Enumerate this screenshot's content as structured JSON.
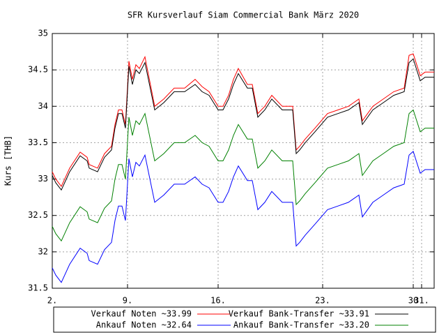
{
  "chart_data": {
    "type": "line",
    "title": "SFR Kursverlauf Siam Commercial Bank März 2020",
    "y_label": "Kurs [THB]",
    "x": [
      0,
      5,
      13,
      25,
      40,
      50,
      53,
      65,
      75,
      85,
      90,
      95,
      100,
      105,
      110,
      115,
      120,
      125,
      133,
      147,
      160,
      175,
      190,
      205,
      215,
      225,
      238,
      245,
      253,
      260,
      267,
      280,
      287,
      295,
      305,
      315,
      330,
      345,
      350,
      355,
      363,
      377,
      395,
      410,
      425,
      440,
      445,
      460,
      475,
      490,
      505,
      512,
      518,
      523,
      528,
      535,
      548
    ],
    "series": [
      {
        "name": "Verkauf Noten ~33.99",
        "color": "#ff0000",
        "values": [
          33.1,
          33.0,
          32.9,
          33.15,
          33.37,
          33.3,
          33.2,
          33.15,
          33.35,
          33.45,
          33.75,
          33.95,
          33.95,
          33.75,
          34.62,
          34.37,
          34.57,
          34.52,
          34.68,
          34.0,
          34.1,
          34.25,
          34.25,
          34.37,
          34.27,
          34.2,
          34.0,
          34.0,
          34.15,
          34.37,
          34.52,
          34.3,
          34.3,
          33.9,
          34.0,
          34.15,
          34.0,
          34.0,
          33.4,
          33.45,
          33.55,
          33.7,
          33.9,
          33.95,
          34.0,
          34.1,
          33.8,
          34.0,
          34.1,
          34.2,
          34.25,
          34.7,
          34.72,
          34.57,
          34.42,
          34.47,
          34.47
        ]
      },
      {
        "name": "Verkauf Bank-Transfer ~33.91",
        "color": "#000000",
        "values": [
          33.05,
          32.95,
          32.85,
          33.1,
          33.32,
          33.25,
          33.15,
          33.1,
          33.3,
          33.4,
          33.7,
          33.9,
          33.9,
          33.7,
          34.55,
          34.3,
          34.5,
          34.45,
          34.6,
          33.95,
          34.05,
          34.2,
          34.2,
          34.3,
          34.2,
          34.15,
          33.95,
          33.95,
          34.1,
          34.3,
          34.45,
          34.25,
          34.25,
          33.85,
          33.95,
          34.1,
          33.95,
          33.95,
          33.35,
          33.4,
          33.5,
          33.65,
          33.85,
          33.9,
          33.95,
          34.05,
          33.75,
          33.95,
          34.05,
          34.15,
          34.2,
          34.6,
          34.65,
          34.5,
          34.35,
          34.4,
          34.4
        ]
      },
      {
        "name": "Ankauf Noten ~32.64",
        "color": "#0000ff",
        "values": [
          31.78,
          31.68,
          31.58,
          31.83,
          32.05,
          31.98,
          31.88,
          31.83,
          32.03,
          32.13,
          32.43,
          32.63,
          32.63,
          32.43,
          33.28,
          33.03,
          33.23,
          33.18,
          33.33,
          32.68,
          32.78,
          32.93,
          32.93,
          33.03,
          32.93,
          32.88,
          32.68,
          32.68,
          32.83,
          33.03,
          33.18,
          32.98,
          32.98,
          32.58,
          32.68,
          32.83,
          32.68,
          32.68,
          32.08,
          32.13,
          32.23,
          32.38,
          32.58,
          32.63,
          32.68,
          32.78,
          32.48,
          32.68,
          32.78,
          32.88,
          32.93,
          33.33,
          33.38,
          33.23,
          33.08,
          33.13,
          33.13
        ]
      },
      {
        "name": "Ankauf Bank-Transfer ~33.20",
        "color": "#008000",
        "values": [
          32.35,
          32.25,
          32.15,
          32.4,
          32.62,
          32.55,
          32.45,
          32.4,
          32.6,
          32.7,
          33.0,
          33.2,
          33.2,
          33.0,
          33.85,
          33.6,
          33.8,
          33.75,
          33.9,
          33.25,
          33.35,
          33.5,
          33.5,
          33.6,
          33.5,
          33.45,
          33.25,
          33.25,
          33.4,
          33.6,
          33.75,
          33.55,
          33.55,
          33.15,
          33.25,
          33.4,
          33.25,
          33.25,
          32.65,
          32.7,
          32.8,
          32.95,
          33.15,
          33.2,
          33.25,
          33.35,
          33.05,
          33.25,
          33.35,
          33.45,
          33.5,
          33.9,
          33.95,
          33.8,
          33.65,
          33.7,
          33.7
        ]
      }
    ],
    "xlim": [
      0,
      548
    ],
    "xticks": [
      {
        "value": 0,
        "label": "2."
      },
      {
        "value": 108,
        "label": "9."
      },
      {
        "value": 238,
        "label": "16."
      },
      {
        "value": 388,
        "label": "23."
      },
      {
        "value": 518,
        "label": "30"
      },
      {
        "value": 530,
        "label": "31."
      }
    ],
    "ylim": [
      31.5,
      35
    ],
    "yticks": [
      {
        "value": 31.5,
        "label": "31.5"
      },
      32,
      {
        "value": 32.5,
        "label": "32.5"
      },
      33,
      {
        "value": 33.5,
        "label": "33.5"
      },
      34,
      {
        "value": 34.5,
        "label": "34.5"
      },
      35
    ],
    "grid": true
  }
}
